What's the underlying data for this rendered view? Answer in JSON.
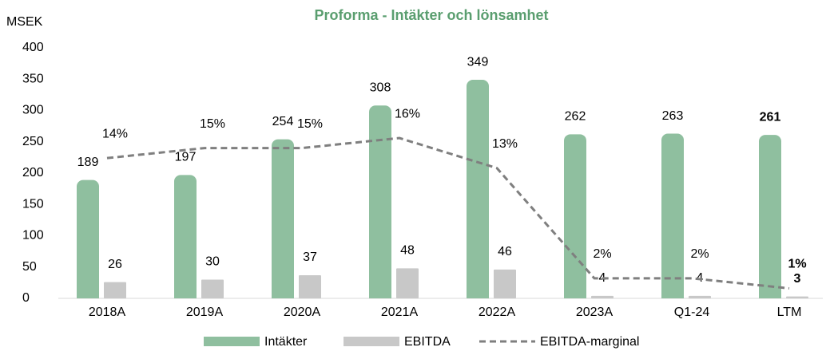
{
  "chart_data": {
    "type": "bar_line",
    "title": "Proforma - Intäkter och lönsamhet",
    "y_axis_label": "MSEK",
    "categories": [
      "2018A",
      "2019A",
      "2020A",
      "2021A",
      "2022A",
      "2023A",
      "Q1-24",
      "LTM"
    ],
    "series": [
      {
        "name": "Intäkter",
        "color": "#8fbf9f",
        "type": "bar",
        "values": [
          189,
          197,
          254,
          308,
          349,
          262,
          263,
          261
        ]
      },
      {
        "name": "EBITDA",
        "color": "#c8c8c8",
        "type": "bar",
        "values": [
          26,
          30,
          37,
          48,
          46,
          4,
          4,
          3
        ]
      },
      {
        "name": "EBITDA-marginal",
        "color": "#7f7f7f",
        "type": "line",
        "axis": "y2",
        "values": [
          14,
          15,
          15,
          16,
          13,
          2,
          2,
          1
        ],
        "value_labels": [
          "14%",
          "15%",
          "15%",
          "16%",
          "13%",
          "2%",
          "2%",
          "1%"
        ]
      }
    ],
    "ylim": [
      0,
      400
    ],
    "yticks": [
      0,
      50,
      100,
      150,
      200,
      250,
      300,
      350,
      400
    ],
    "y2lim": [
      0,
      25
    ]
  }
}
